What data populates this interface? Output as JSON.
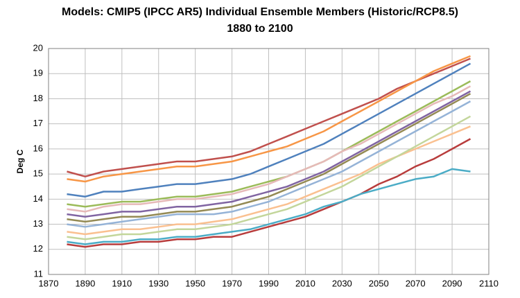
{
  "chart_data": {
    "type": "line",
    "title": "Models: CMIP5 (IPCC AR5) Individual Ensemble Members (Historic/RCP8.5)",
    "subtitle": "1880 to 2100",
    "y_label": "Deg C",
    "x": [
      1880,
      1890,
      1900,
      1910,
      1920,
      1930,
      1940,
      1950,
      1960,
      1970,
      1980,
      1990,
      2000,
      2010,
      2020,
      2030,
      2040,
      2050,
      2060,
      2070,
      2080,
      2090,
      2100
    ],
    "xlim": [
      1870,
      2110
    ],
    "xticks": [
      1870,
      1890,
      1910,
      1930,
      1950,
      1970,
      1990,
      2010,
      2030,
      2050,
      2070,
      2090,
      2110
    ],
    "ylim": [
      11,
      20
    ],
    "yticks": [
      11,
      12,
      13,
      14,
      15,
      16,
      17,
      18,
      19,
      20
    ],
    "grid": true,
    "series": [
      {
        "color": "#c0504d",
        "values": [
          15.1,
          14.9,
          15.1,
          15.2,
          15.3,
          15.4,
          15.5,
          15.5,
          15.6,
          15.7,
          15.9,
          16.2,
          16.5,
          16.8,
          17.1,
          17.4,
          17.7,
          18.0,
          18.4,
          18.7,
          19.0,
          19.3,
          19.6
        ]
      },
      {
        "color": "#f79646",
        "values": [
          14.8,
          14.7,
          14.9,
          15.0,
          15.1,
          15.2,
          15.3,
          15.3,
          15.4,
          15.5,
          15.7,
          15.9,
          16.1,
          16.4,
          16.7,
          17.1,
          17.5,
          17.9,
          18.3,
          18.7,
          19.1,
          19.4,
          19.7
        ]
      },
      {
        "color": "#4f81bd",
        "values": [
          14.2,
          14.1,
          14.3,
          14.3,
          14.4,
          14.5,
          14.6,
          14.6,
          14.7,
          14.8,
          15.0,
          15.3,
          15.6,
          15.9,
          16.2,
          16.6,
          17.0,
          17.4,
          17.8,
          18.2,
          18.6,
          19.0,
          19.4
        ]
      },
      {
        "color": "#9bbb59",
        "values": [
          13.8,
          13.7,
          13.8,
          13.9,
          13.9,
          14.0,
          14.1,
          14.1,
          14.2,
          14.3,
          14.5,
          14.7,
          14.9,
          15.2,
          15.5,
          15.9,
          16.3,
          16.7,
          17.1,
          17.5,
          17.9,
          18.3,
          18.7
        ]
      },
      {
        "color": "#8064a2",
        "values": [
          13.4,
          13.3,
          13.4,
          13.5,
          13.5,
          13.6,
          13.7,
          13.7,
          13.8,
          13.9,
          14.1,
          14.3,
          14.5,
          14.8,
          15.1,
          15.5,
          15.9,
          16.3,
          16.7,
          17.1,
          17.5,
          17.9,
          18.3
        ]
      },
      {
        "color": "#95b3d7",
        "values": [
          13.0,
          12.9,
          13.0,
          13.1,
          13.2,
          13.3,
          13.4,
          13.4,
          13.4,
          13.5,
          13.7,
          13.9,
          14.2,
          14.5,
          14.8,
          15.1,
          15.5,
          15.9,
          16.3,
          16.7,
          17.1,
          17.5,
          17.9
        ]
      },
      {
        "color": "#fac090",
        "values": [
          12.7,
          12.6,
          12.7,
          12.8,
          12.8,
          12.9,
          13.0,
          13.0,
          13.1,
          13.2,
          13.4,
          13.6,
          13.8,
          14.1,
          14.4,
          14.7,
          15.0,
          15.4,
          15.7,
          16.0,
          16.3,
          16.6,
          16.9
        ]
      },
      {
        "color": "#c3d69b",
        "values": [
          12.5,
          12.4,
          12.5,
          12.6,
          12.6,
          12.7,
          12.8,
          12.8,
          12.9,
          13.0,
          13.2,
          13.4,
          13.6,
          13.9,
          14.2,
          14.5,
          14.9,
          15.3,
          15.7,
          16.1,
          16.5,
          16.9,
          17.3
        ]
      },
      {
        "color": "#b83c3c",
        "values": [
          12.2,
          12.1,
          12.2,
          12.2,
          12.3,
          12.3,
          12.4,
          12.4,
          12.5,
          12.5,
          12.7,
          12.9,
          13.1,
          13.3,
          13.6,
          13.9,
          14.2,
          14.6,
          14.9,
          15.3,
          15.6,
          16.0,
          16.4
        ]
      },
      {
        "color": "#4bacc6",
        "values": [
          12.3,
          12.2,
          12.3,
          12.3,
          12.4,
          12.4,
          12.5,
          12.5,
          12.6,
          12.7,
          12.8,
          13.0,
          13.2,
          13.4,
          13.7,
          13.9,
          14.2,
          14.4,
          14.6,
          14.8,
          14.9,
          15.2,
          15.1
        ]
      },
      {
        "color": "#e6b9b8",
        "values": [
          13.6,
          13.5,
          13.7,
          13.8,
          13.8,
          13.9,
          14.0,
          14.0,
          14.1,
          14.2,
          14.4,
          14.6,
          14.9,
          15.2,
          15.5,
          15.9,
          16.2,
          16.6,
          17.0,
          17.4,
          17.8,
          18.1,
          18.5
        ]
      },
      {
        "color": "#948a54",
        "values": [
          13.2,
          13.1,
          13.2,
          13.3,
          13.3,
          13.4,
          13.5,
          13.5,
          13.6,
          13.7,
          13.9,
          14.1,
          14.4,
          14.7,
          15.0,
          15.4,
          15.8,
          16.2,
          16.6,
          17.0,
          17.4,
          17.8,
          18.2
        ]
      }
    ]
  }
}
